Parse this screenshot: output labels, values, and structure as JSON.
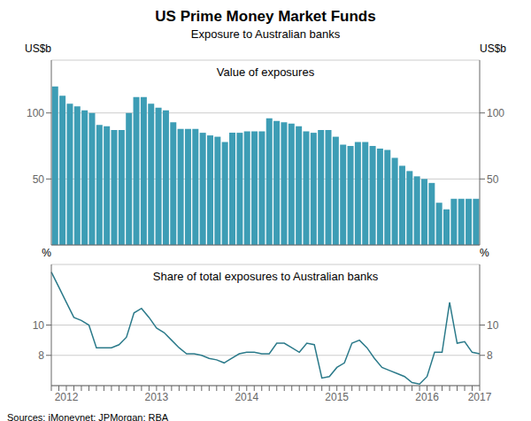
{
  "chart_data": [
    {
      "type": "bar",
      "title": "US Prime Money Market Funds",
      "subtitle": "Exposure to Australian banks",
      "annotation": "Value of exposures",
      "ylabel": "US$b",
      "y2label": "US$b",
      "categories": [
        null,
        null,
        "2012",
        null,
        null,
        null,
        null,
        null,
        null,
        null,
        null,
        null,
        null,
        null,
        "2013",
        null,
        null,
        null,
        null,
        null,
        null,
        null,
        null,
        null,
        null,
        null,
        "2014",
        null,
        null,
        null,
        null,
        null,
        null,
        null,
        null,
        null,
        null,
        null,
        "2015",
        null,
        null,
        null,
        null,
        null,
        null,
        null,
        null,
        null,
        null,
        null,
        "2016",
        null,
        null,
        null,
        null,
        null,
        null,
        "2017"
      ],
      "values": [
        120,
        113,
        107,
        105,
        102,
        100,
        91,
        90,
        87,
        87,
        100,
        112,
        112,
        107,
        104,
        102,
        93,
        88,
        88,
        88,
        85,
        83,
        82,
        78,
        85,
        85,
        86,
        86,
        86,
        96,
        94,
        93,
        92,
        90,
        86,
        85,
        87,
        87,
        82,
        76,
        75,
        78,
        78,
        75,
        73,
        72,
        66,
        60,
        56,
        52,
        50,
        47,
        32,
        27,
        35,
        35,
        35,
        35
      ],
      "color": "#3d9db5",
      "ylim": [
        0,
        140
      ],
      "yticks": [
        50,
        100
      ],
      "y2lim": [
        0,
        140
      ],
      "y2ticks": [
        50,
        100
      ],
      "grid": true,
      "tick_labels": "y"
    },
    {
      "type": "line",
      "annotation": "Share of total exposures to Australian banks",
      "ylabel": "%",
      "y2label": "%",
      "source": "Sources: iMoneynet; JPMorgan; RBA",
      "categories": [
        null,
        null,
        "2012",
        null,
        null,
        null,
        null,
        null,
        null,
        null,
        null,
        null,
        null,
        null,
        "2013",
        null,
        null,
        null,
        null,
        null,
        null,
        null,
        null,
        null,
        null,
        null,
        "2014",
        null,
        null,
        null,
        null,
        null,
        null,
        null,
        null,
        null,
        null,
        null,
        "2015",
        null,
        null,
        null,
        null,
        null,
        null,
        null,
        null,
        null,
        null,
        null,
        "2016",
        null,
        null,
        null,
        null,
        null,
        null,
        "2017"
      ],
      "values": [
        13.5,
        12.5,
        11.5,
        10.5,
        10.3,
        10.0,
        8.5,
        8.5,
        8.5,
        8.7,
        9.2,
        10.8,
        11.1,
        10.5,
        9.8,
        9.5,
        9.0,
        8.5,
        8.1,
        8.1,
        8.0,
        7.8,
        7.7,
        7.5,
        7.8,
        8.1,
        8.2,
        8.2,
        8.1,
        8.1,
        8.8,
        8.8,
        8.5,
        8.2,
        8.8,
        8.7,
        6.5,
        6.6,
        7.2,
        7.5,
        8.8,
        9.0,
        8.5,
        7.8,
        7.2,
        7.0,
        6.8,
        6.6,
        6.2,
        6.1,
        6.6,
        8.2,
        8.2,
        11.5,
        8.8,
        8.9,
        8.2,
        8.1
      ],
      "color": "#2b7a8a",
      "ylim": [
        6,
        14
      ],
      "yticks": [
        8,
        10
      ],
      "y2lim": [
        6,
        14
      ],
      "y2ticks": [
        8,
        10
      ],
      "grid": true
    }
  ]
}
